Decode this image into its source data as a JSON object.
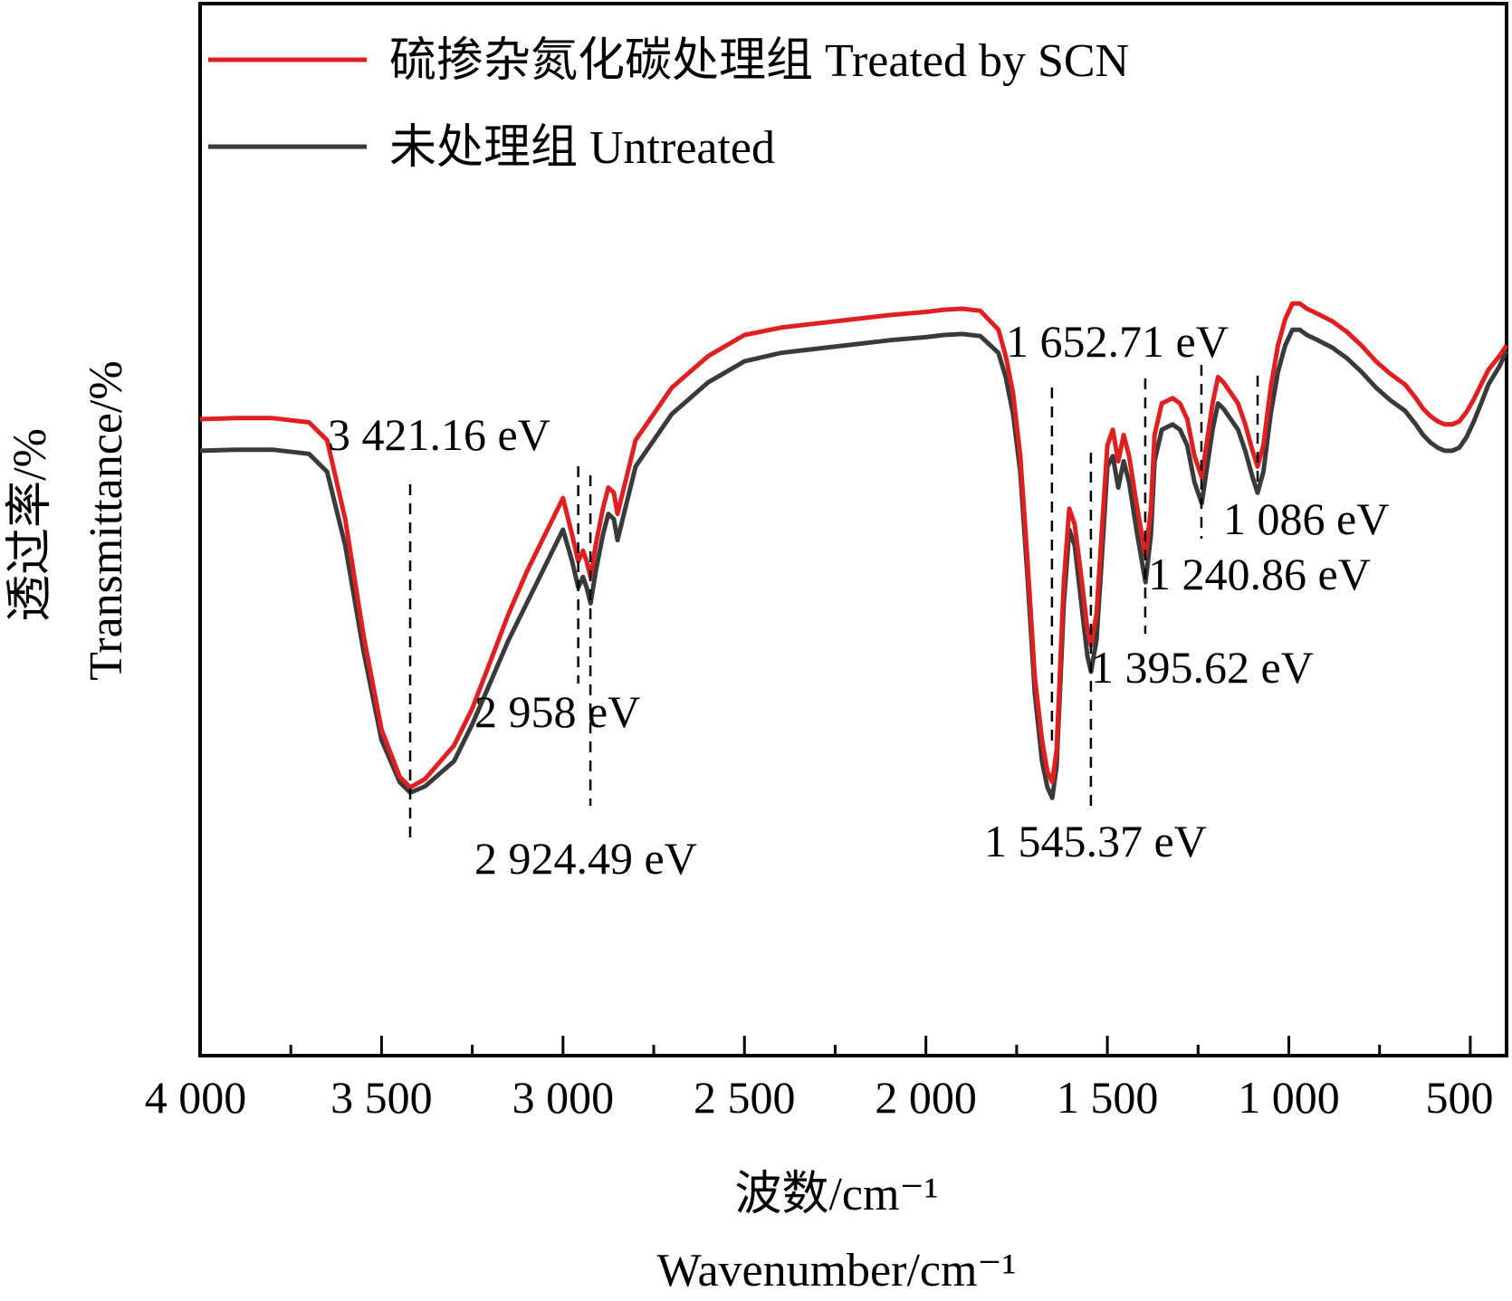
{
  "chart_data": {
    "type": "line",
    "title": "",
    "xlabel_cn": "波数/cm⁻¹",
    "xlabel_en": "Wavenumber/cm⁻¹",
    "ylabel_cn": "透过率/%",
    "ylabel_en": "Transmittance/%",
    "x_reversed": true,
    "xlim": [
      4000,
      400
    ],
    "ylim": [
      0,
      100
    ],
    "y_ticks_shown": false,
    "x_ticks": [
      4000,
      3500,
      3000,
      2500,
      2000,
      1500,
      1000,
      500
    ],
    "x_tick_labels": [
      "4 000",
      "3 500",
      "3 000",
      "2 500",
      "2 000",
      "1 500",
      "1 000",
      "500"
    ],
    "grid": false,
    "legend_position": "top-left",
    "series": [
      {
        "name": "硫掺杂氮化碳处理组 Treated by SCN",
        "color": "#e02020",
        "x": [
          4000,
          3900,
          3800,
          3700,
          3650,
          3600,
          3550,
          3500,
          3450,
          3421,
          3380,
          3350,
          3300,
          3250,
          3200,
          3150,
          3100,
          3050,
          3000,
          2975,
          2958,
          2945,
          2935,
          2924,
          2910,
          2890,
          2875,
          2860,
          2850,
          2800,
          2700,
          2600,
          2500,
          2400,
          2300,
          2200,
          2100,
          2000,
          1950,
          1900,
          1850,
          1800,
          1780,
          1760,
          1740,
          1720,
          1700,
          1680,
          1665,
          1652,
          1640,
          1620,
          1605,
          1590,
          1570,
          1555,
          1545,
          1530,
          1515,
          1500,
          1485,
          1470,
          1455,
          1440,
          1420,
          1405,
          1395,
          1380,
          1370,
          1350,
          1320,
          1300,
          1280,
          1260,
          1245,
          1240,
          1225,
          1210,
          1195,
          1180,
          1160,
          1140,
          1120,
          1100,
          1086,
          1070,
          1050,
          1030,
          1010,
          990,
          970,
          950,
          920,
          880,
          840,
          800,
          760,
          720,
          680,
          650,
          630,
          610,
          590,
          570,
          550,
          530,
          510,
          490,
          470,
          450,
          420,
          400
        ],
        "y": [
          60.5,
          60.6,
          60.6,
          60.2,
          58.5,
          51.0,
          40.0,
          31.0,
          26.5,
          25.5,
          26.3,
          27.5,
          29.5,
          33.0,
          37.5,
          42.0,
          46.0,
          49.5,
          53.0,
          49.5,
          47.0,
          48.0,
          47.0,
          45.5,
          48.5,
          52.0,
          54.0,
          53.5,
          51.5,
          58.5,
          63.5,
          66.5,
          68.5,
          69.2,
          69.6,
          70.0,
          70.4,
          70.7,
          70.9,
          71.0,
          70.8,
          69.0,
          66.5,
          63.0,
          57.0,
          47.0,
          36.0,
          30.0,
          27.0,
          26.0,
          29.0,
          45.0,
          52.0,
          50.5,
          45.0,
          40.5,
          39.0,
          42.0,
          50.0,
          58.0,
          59.5,
          56.5,
          59.0,
          57.0,
          52.5,
          49.5,
          47.5,
          52.0,
          59.0,
          62.0,
          62.5,
          62.0,
          60.5,
          57.0,
          55.5,
          55.0,
          58.5,
          62.0,
          64.5,
          64.0,
          63.0,
          62.0,
          60.0,
          57.5,
          56.0,
          58.0,
          63.5,
          67.5,
          70.0,
          71.5,
          71.5,
          71.0,
          70.5,
          69.8,
          68.8,
          67.5,
          66.0,
          64.8,
          63.8,
          62.5,
          61.5,
          60.8,
          60.3,
          60.0,
          60.0,
          60.3,
          61.2,
          62.4,
          63.8,
          65.2,
          66.5,
          67.5
        ]
      },
      {
        "name": "未处理组 Untreated",
        "color": "#3a3a3a",
        "x": [
          4000,
          3900,
          3800,
          3700,
          3650,
          3600,
          3550,
          3500,
          3450,
          3421,
          3380,
          3350,
          3300,
          3250,
          3200,
          3150,
          3100,
          3050,
          3000,
          2975,
          2958,
          2945,
          2935,
          2924,
          2910,
          2890,
          2875,
          2860,
          2850,
          2800,
          2700,
          2600,
          2500,
          2400,
          2300,
          2200,
          2100,
          2000,
          1950,
          1900,
          1850,
          1800,
          1780,
          1760,
          1740,
          1720,
          1700,
          1680,
          1665,
          1652,
          1640,
          1620,
          1605,
          1590,
          1570,
          1555,
          1545,
          1530,
          1515,
          1500,
          1485,
          1470,
          1455,
          1440,
          1420,
          1405,
          1395,
          1380,
          1370,
          1350,
          1320,
          1300,
          1280,
          1260,
          1245,
          1240,
          1225,
          1210,
          1195,
          1180,
          1160,
          1140,
          1120,
          1100,
          1086,
          1070,
          1050,
          1030,
          1010,
          990,
          970,
          950,
          920,
          880,
          840,
          800,
          760,
          720,
          680,
          650,
          630,
          610,
          590,
          570,
          550,
          530,
          510,
          490,
          470,
          450,
          420,
          400
        ],
        "y": [
          57.5,
          57.6,
          57.6,
          57.2,
          55.5,
          48.5,
          38.5,
          30.0,
          26.0,
          25.0,
          25.6,
          26.5,
          28.0,
          31.5,
          35.5,
          39.5,
          43.0,
          46.5,
          50.0,
          47.0,
          44.5,
          45.5,
          44.5,
          43.0,
          46.0,
          49.5,
          51.5,
          51.0,
          49.0,
          56.0,
          61.0,
          64.0,
          66.0,
          66.8,
          67.2,
          67.6,
          68.0,
          68.3,
          68.5,
          68.6,
          68.4,
          66.8,
          64.5,
          61.0,
          55.5,
          45.5,
          34.5,
          28.0,
          25.5,
          24.5,
          27.5,
          43.0,
          50.0,
          48.5,
          42.5,
          38.0,
          36.5,
          39.5,
          47.5,
          56.0,
          57.0,
          54.0,
          56.5,
          54.5,
          50.0,
          47.0,
          45.0,
          49.5,
          56.5,
          59.5,
          60.0,
          59.5,
          58.0,
          54.5,
          53.0,
          52.5,
          56.0,
          59.5,
          62.0,
          61.5,
          60.5,
          59.5,
          57.5,
          55.0,
          53.5,
          55.5,
          61.0,
          65.0,
          67.5,
          69.0,
          69.0,
          68.5,
          68.0,
          67.3,
          66.3,
          65.0,
          63.5,
          62.3,
          61.3,
          60.0,
          59.0,
          58.3,
          57.8,
          57.5,
          57.5,
          57.8,
          58.8,
          60.3,
          62.0,
          63.8,
          65.5,
          67.0
        ]
      }
    ],
    "annotations": [
      {
        "x": 3421.16,
        "label": "3 421.16 eV"
      },
      {
        "x": 2958,
        "label": "2 958 eV"
      },
      {
        "x": 2924.49,
        "label": "2 924.49 eV"
      },
      {
        "x": 1652.71,
        "label": "1 652.71 eV"
      },
      {
        "x": 1545.37,
        "label": "1 545.37 eV"
      },
      {
        "x": 1395.62,
        "label": "1 395.62 eV"
      },
      {
        "x": 1240.86,
        "label": "1 240.86 eV"
      },
      {
        "x": 1086,
        "label": "1 086 eV"
      }
    ]
  }
}
